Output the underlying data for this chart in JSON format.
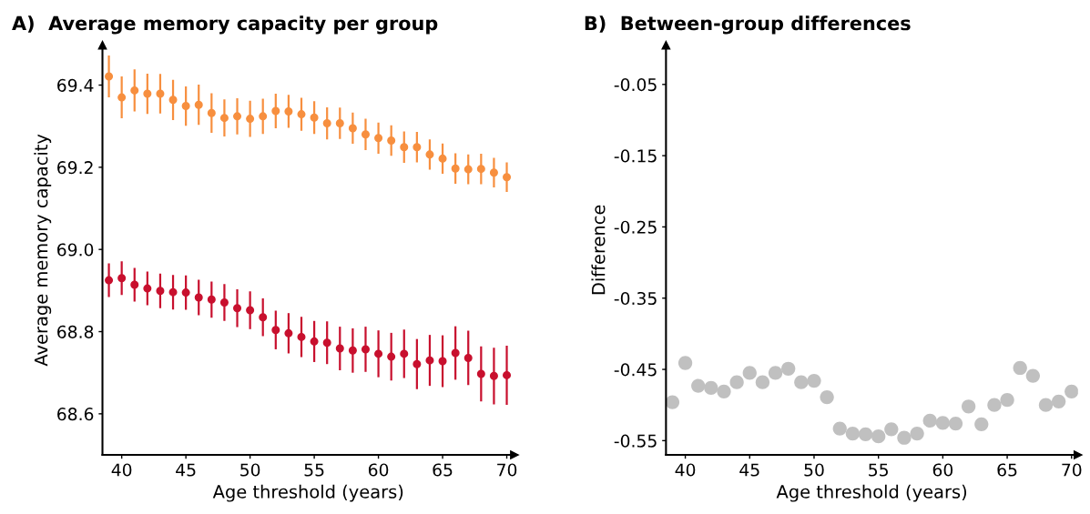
{
  "chart_data": [
    {
      "type": "scatter",
      "title": "A)  Average memory capacity per group",
      "xlabel": "Age threshold (years)",
      "ylabel": "Average memory capacity",
      "x": [
        39,
        40,
        41,
        42,
        43,
        44,
        45,
        46,
        47,
        48,
        49,
        50,
        51,
        52,
        53,
        54,
        55,
        56,
        57,
        58,
        59,
        60,
        61,
        62,
        63,
        64,
        65,
        66,
        67,
        68,
        69,
        70
      ],
      "series": [
        {
          "color": "#f78f3f",
          "values": [
            69.421,
            69.37,
            69.387,
            69.379,
            69.379,
            69.364,
            69.349,
            69.352,
            69.332,
            69.32,
            69.324,
            69.318,
            69.324,
            69.337,
            69.336,
            69.329,
            69.321,
            69.307,
            69.307,
            69.295,
            69.28,
            69.271,
            69.265,
            69.249,
            69.249,
            69.231,
            69.221,
            69.197,
            69.195,
            69.196,
            69.187,
            69.176
          ],
          "errors": [
            0.051,
            0.051,
            0.051,
            0.049,
            0.048,
            0.049,
            0.048,
            0.049,
            0.048,
            0.045,
            0.044,
            0.044,
            0.043,
            0.042,
            0.04,
            0.04,
            0.04,
            0.039,
            0.038,
            0.038,
            0.038,
            0.038,
            0.037,
            0.038,
            0.037,
            0.037,
            0.037,
            0.037,
            0.036,
            0.037,
            0.036,
            0.036
          ]
        },
        {
          "color": "#c8102e",
          "values": [
            68.925,
            68.93,
            68.914,
            68.905,
            68.899,
            68.896,
            68.895,
            68.883,
            68.878,
            68.871,
            68.857,
            68.852,
            68.835,
            68.804,
            68.796,
            68.787,
            68.776,
            68.773,
            68.759,
            68.754,
            68.757,
            68.746,
            68.739,
            68.746,
            68.721,
            68.73,
            68.728,
            68.748,
            68.736,
            68.697,
            68.692,
            68.694
          ],
          "errors": [
            0.041,
            0.041,
            0.041,
            0.041,
            0.042,
            0.042,
            0.042,
            0.043,
            0.044,
            0.045,
            0.046,
            0.046,
            0.046,
            0.047,
            0.049,
            0.049,
            0.05,
            0.052,
            0.053,
            0.054,
            0.055,
            0.057,
            0.058,
            0.059,
            0.061,
            0.062,
            0.063,
            0.065,
            0.066,
            0.067,
            0.069,
            0.072
          ]
        }
      ],
      "marker": "circle",
      "xlim": [
        38.5,
        70.6
      ],
      "xticks": [
        40,
        45,
        50,
        55,
        60,
        65,
        70
      ],
      "ylim": [
        68.5,
        69.497
      ],
      "yticks": [
        68.6,
        68.8,
        {
          "value": 69.0,
          "label": "69.0"
        },
        69.2,
        69.4
      ],
      "grid": false,
      "legend": false
    },
    {
      "type": "scatter",
      "title": "B)  Between-group differences",
      "xlabel": "Age threshold (years)",
      "ylabel": "Difference",
      "x": [
        39,
        40,
        41,
        42,
        43,
        44,
        45,
        46,
        47,
        48,
        49,
        50,
        51,
        52,
        53,
        54,
        55,
        56,
        57,
        58,
        59,
        60,
        61,
        62,
        63,
        64,
        65,
        66,
        67,
        68,
        69,
        70
      ],
      "series": [
        {
          "color": "#c0c0c0",
          "values": [
            -0.496,
            -0.441,
            -0.473,
            -0.476,
            -0.481,
            -0.468,
            -0.455,
            -0.468,
            -0.455,
            -0.449,
            -0.468,
            -0.466,
            -0.489,
            -0.533,
            -0.54,
            -0.541,
            -0.544,
            -0.534,
            -0.546,
            -0.54,
            -0.522,
            -0.525,
            -0.526,
            -0.502,
            -0.527,
            -0.5,
            -0.493,
            -0.448,
            -0.459,
            -0.5,
            -0.495,
            -0.481
          ]
        }
      ],
      "marker": "circle",
      "xlim": [
        38.5,
        70.5
      ],
      "xticks": [
        40,
        45,
        50,
        55,
        60,
        65,
        70
      ],
      "ylim": [
        -0.57,
        0.005
      ],
      "yticks": [
        -0.55,
        -0.45,
        -0.35,
        -0.25,
        -0.15,
        -0.05
      ],
      "grid": false,
      "legend": false
    }
  ]
}
